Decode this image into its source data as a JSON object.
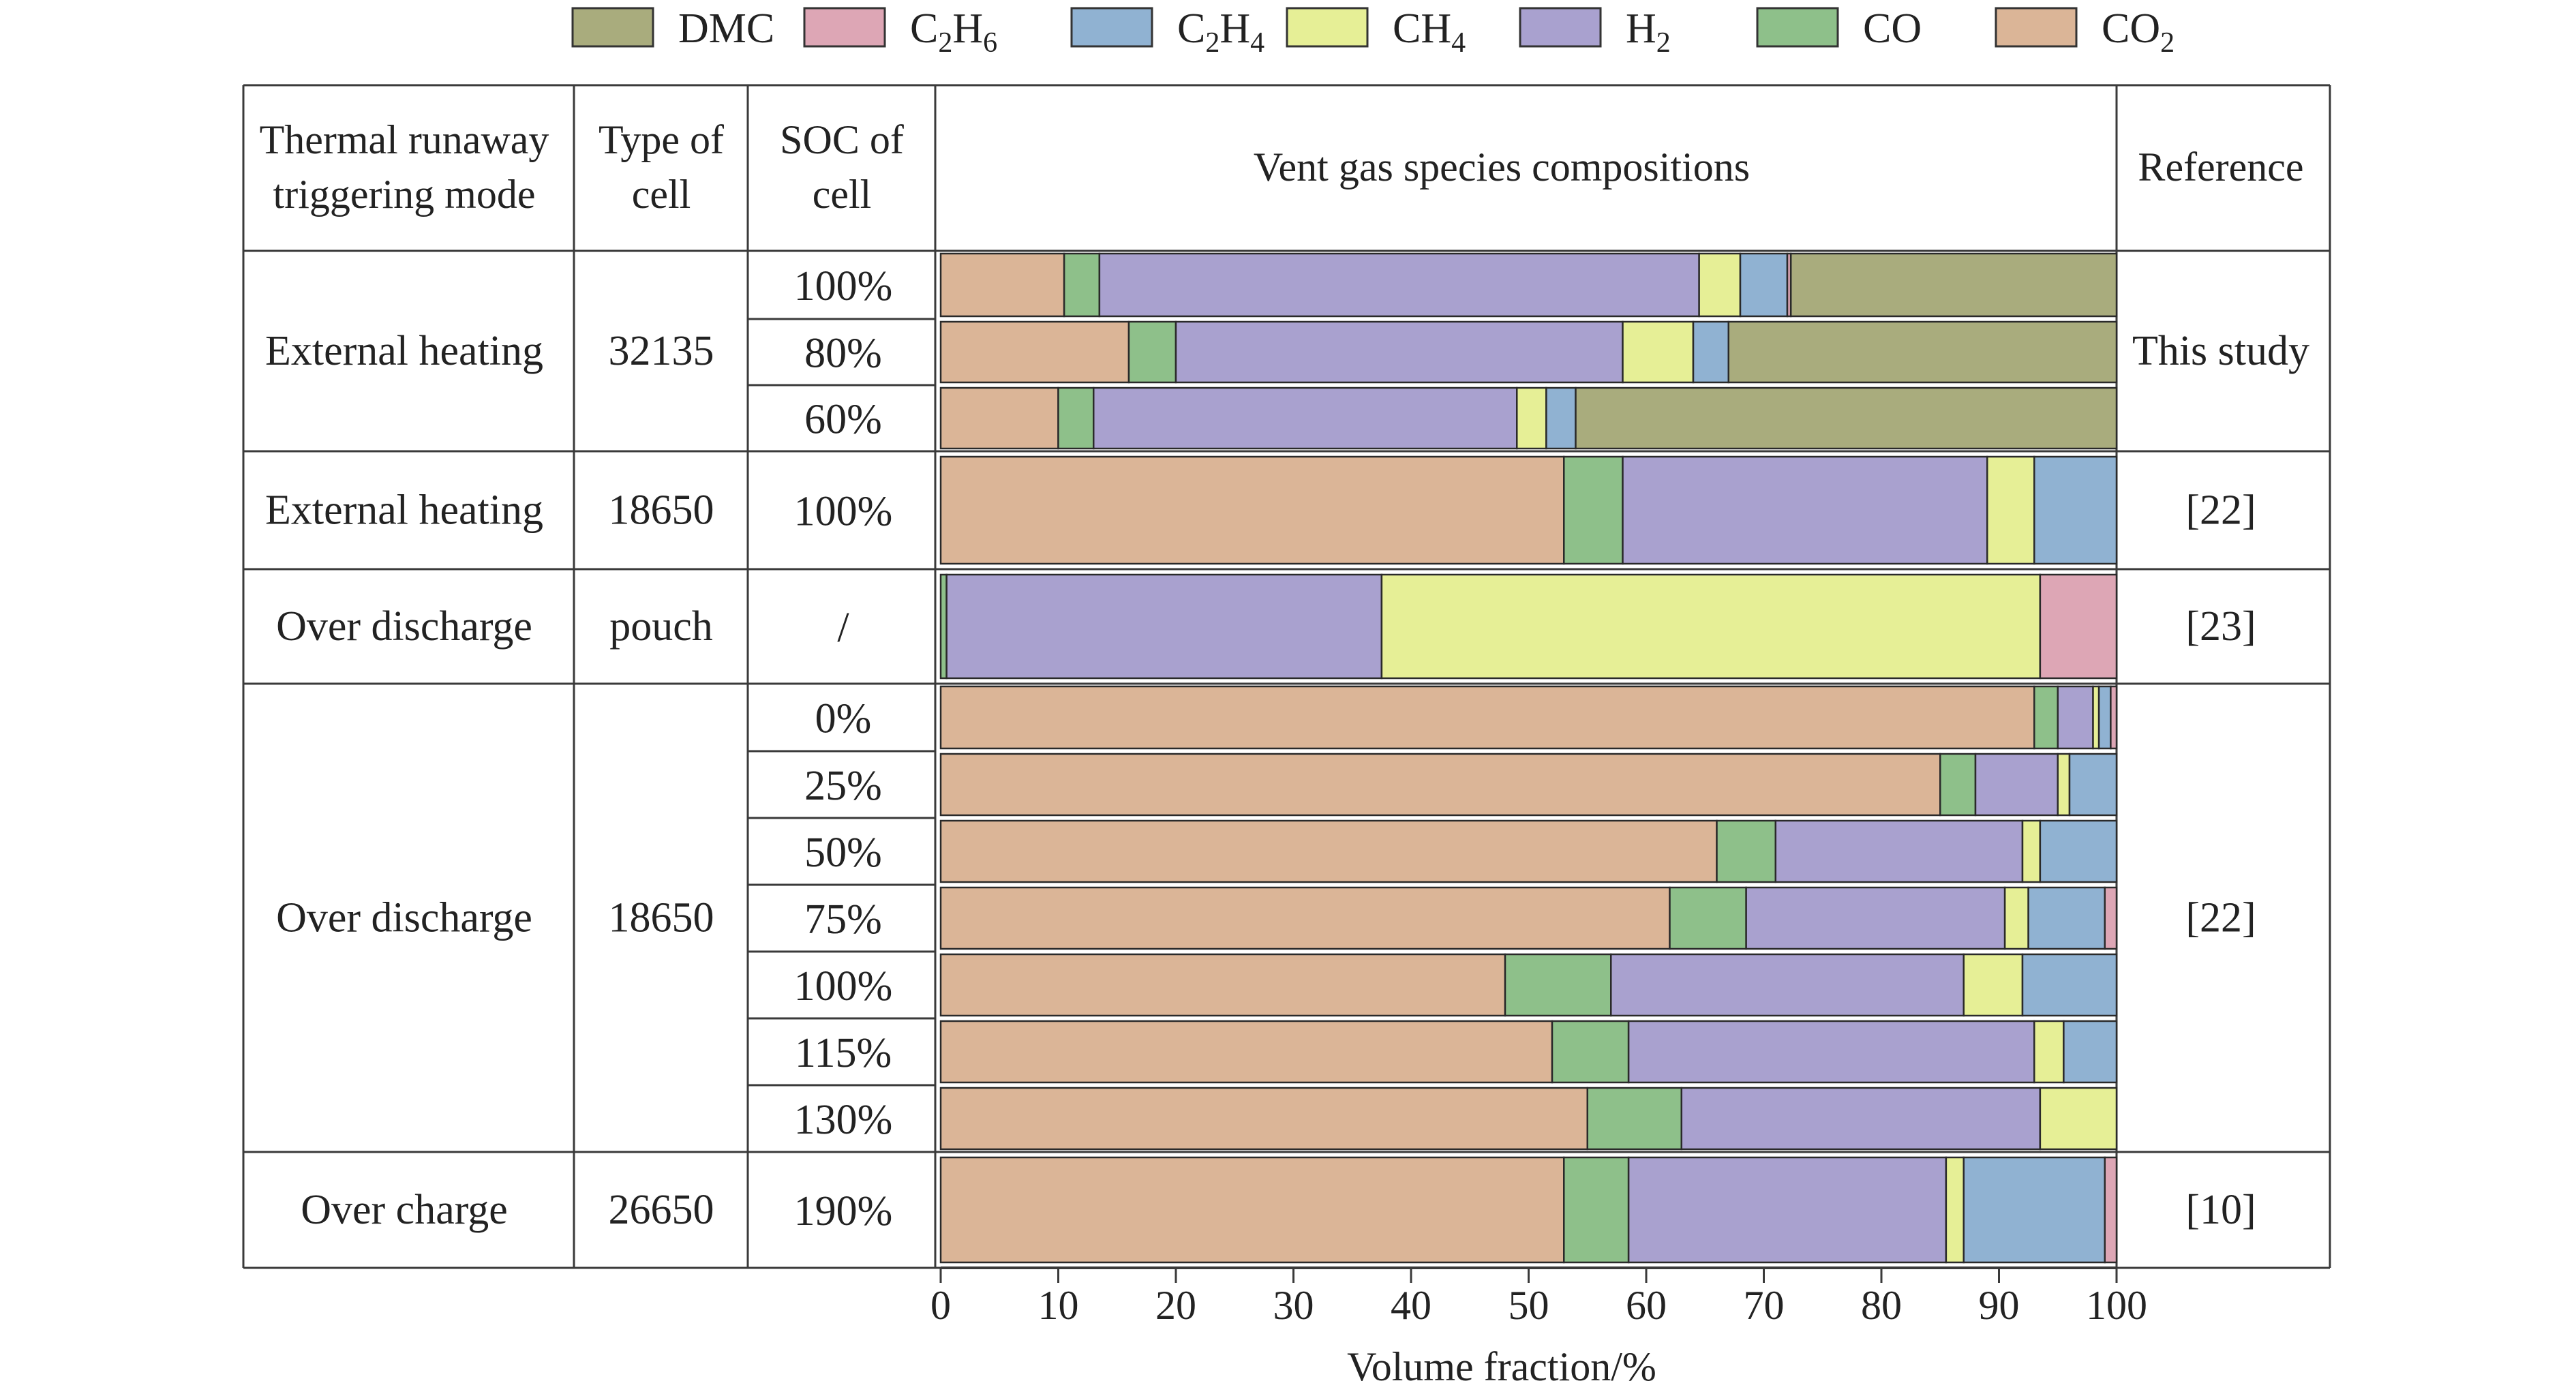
{
  "chart_data": {
    "type": "bar",
    "orientation": "horizontal",
    "stacked": true,
    "xlabel": "Volume fraction/%",
    "xlim": [
      0,
      100
    ],
    "xticks": [
      "0",
      "10",
      "20",
      "30",
      "40",
      "50",
      "60",
      "70",
      "80",
      "90",
      "100"
    ],
    "legend": {
      "placement": "top",
      "entries": [
        {
          "key": "DMC",
          "label": "DMC",
          "sub": "",
          "color": "#a9ac7d"
        },
        {
          "key": "C2H6",
          "label": "C",
          "sub": "2",
          "label2": "H",
          "sub2": "6",
          "color": "#dda6b5"
        },
        {
          "key": "C2H4",
          "label": "C",
          "sub": "2",
          "label2": "H",
          "sub2": "4",
          "color": "#90b2d2"
        },
        {
          "key": "CH4",
          "label": "CH",
          "sub": "4",
          "color": "#e6ef96"
        },
        {
          "key": "H2",
          "label": "H",
          "sub": "2",
          "color": "#a9a1cf"
        },
        {
          "key": "CO",
          "label": "CO",
          "sub": "",
          "color": "#8ec08a"
        },
        {
          "key": "CO2",
          "label": "CO",
          "sub": "2",
          "color": "#dbb597"
        }
      ]
    },
    "stack_order": [
      "CO2",
      "CO",
      "H2",
      "CH4",
      "C2H4",
      "C2H6",
      "DMC"
    ],
    "table_headers": {
      "mode": [
        "Thermal runaway",
        "triggering mode"
      ],
      "cell": [
        "Type of",
        "cell"
      ],
      "soc": [
        "SOC of",
        "cell"
      ],
      "composition": "Vent gas species compositions",
      "reference": "Reference"
    },
    "groups": [
      {
        "mode": "External heating",
        "cell": "32135",
        "reference": "This study",
        "rows": [
          0,
          1,
          2
        ]
      },
      {
        "mode": "External heating",
        "cell": "18650",
        "reference": "[22]",
        "rows": [
          3
        ]
      },
      {
        "mode": "Over discharge",
        "cell": "pouch",
        "reference": "[23]",
        "rows": [
          4
        ]
      },
      {
        "mode": "Over discharge",
        "cell": "18650",
        "reference": "[22]",
        "rows": [
          5,
          6,
          7,
          8,
          9,
          10,
          11
        ]
      },
      {
        "mode": "Over charge",
        "cell": "26650",
        "reference": "[10]",
        "rows": [
          12
        ]
      }
    ],
    "rows": [
      {
        "soc": "100%",
        "values": {
          "CO2": 10.5,
          "CO": 3,
          "H2": 51,
          "CH4": 3.5,
          "C2H4": 4,
          "C2H6": 0.3,
          "DMC": 27.7
        }
      },
      {
        "soc": "80%",
        "values": {
          "CO2": 16,
          "CO": 4,
          "H2": 38,
          "CH4": 6,
          "C2H4": 3,
          "C2H6": 0,
          "DMC": 33
        }
      },
      {
        "soc": "60%",
        "values": {
          "CO2": 10,
          "CO": 3,
          "H2": 36,
          "CH4": 2.5,
          "C2H4": 2.5,
          "C2H6": 0,
          "DMC": 46
        }
      },
      {
        "soc": "100%",
        "values": {
          "CO2": 53,
          "CO": 5,
          "H2": 31,
          "CH4": 4,
          "C2H4": 7,
          "C2H6": 0,
          "DMC": 0
        }
      },
      {
        "soc": "/",
        "values": {
          "CO2": 0,
          "CO": 0.5,
          "H2": 37,
          "CH4": 56,
          "C2H4": 0,
          "C2H6": 6.5,
          "DMC": 0
        }
      },
      {
        "soc": "0%",
        "values": {
          "CO2": 93,
          "CO": 2,
          "H2": 3,
          "CH4": 0.5,
          "C2H4": 1,
          "C2H6": 0.5,
          "DMC": 0
        }
      },
      {
        "soc": "25%",
        "values": {
          "CO2": 85,
          "CO": 3,
          "H2": 7,
          "CH4": 1,
          "C2H4": 4,
          "C2H6": 0,
          "DMC": 0
        }
      },
      {
        "soc": "50%",
        "values": {
          "CO2": 66,
          "CO": 5,
          "H2": 21,
          "CH4": 1.5,
          "C2H4": 6.5,
          "C2H6": 0,
          "DMC": 0
        }
      },
      {
        "soc": "75%",
        "values": {
          "CO2": 62,
          "CO": 6.5,
          "H2": 22,
          "CH4": 2,
          "C2H4": 6.5,
          "C2H6": 1,
          "DMC": 0
        }
      },
      {
        "soc": "100%",
        "values": {
          "CO2": 48,
          "CO": 9,
          "H2": 30,
          "CH4": 5,
          "C2H4": 8,
          "C2H6": 0,
          "DMC": 0
        }
      },
      {
        "soc": "115%",
        "values": {
          "CO2": 52,
          "CO": 6.5,
          "H2": 34.5,
          "CH4": 2.5,
          "C2H4": 4.5,
          "C2H6": 0,
          "DMC": 0
        }
      },
      {
        "soc": "130%",
        "values": {
          "CO2": 55,
          "CO": 8,
          "H2": 30.5,
          "CH4": 6.5,
          "C2H4": 0,
          "C2H6": 0,
          "DMC": 0
        }
      },
      {
        "soc": "190%",
        "values": {
          "CO2": 53,
          "CO": 5.5,
          "H2": 27,
          "CH4": 1.5,
          "C2H4": 12,
          "C2H6": 1,
          "DMC": 0
        }
      }
    ]
  }
}
